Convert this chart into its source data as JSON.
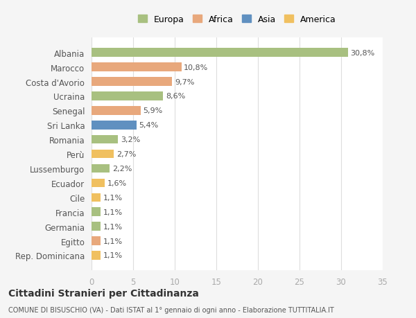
{
  "countries": [
    "Albania",
    "Marocco",
    "Costa d'Avorio",
    "Ucraina",
    "Senegal",
    "Sri Lanka",
    "Romania",
    "Perù",
    "Lussemburgo",
    "Ecuador",
    "Cile",
    "Francia",
    "Germania",
    "Egitto",
    "Rep. Dominicana"
  ],
  "values": [
    30.8,
    10.8,
    9.7,
    8.6,
    5.9,
    5.4,
    3.2,
    2.7,
    2.2,
    1.6,
    1.1,
    1.1,
    1.1,
    1.1,
    1.1
  ],
  "labels": [
    "30,8%",
    "10,8%",
    "9,7%",
    "8,6%",
    "5,9%",
    "5,4%",
    "3,2%",
    "2,7%",
    "2,2%",
    "1,6%",
    "1,1%",
    "1,1%",
    "1,1%",
    "1,1%",
    "1,1%"
  ],
  "colors": [
    "#a8c080",
    "#e8a87c",
    "#e8a87c",
    "#a8c080",
    "#e8a87c",
    "#6090c0",
    "#a8c080",
    "#f0c060",
    "#a8c080",
    "#f0c060",
    "#f0c060",
    "#a8c080",
    "#a8c080",
    "#e8a87c",
    "#f0c060"
  ],
  "legend_labels": [
    "Europa",
    "Africa",
    "Asia",
    "America"
  ],
  "legend_colors": [
    "#a8c080",
    "#e8a87c",
    "#6090c0",
    "#f0c060"
  ],
  "title": "Cittadini Stranieri per Cittadinanza",
  "subtitle": "COMUNE DI BISUSCHIO (VA) - Dati ISTAT al 1° gennaio di ogni anno - Elaborazione TUTTITALIA.IT",
  "xlim": [
    0,
    35
  ],
  "xticks": [
    0,
    5,
    10,
    15,
    20,
    25,
    30,
    35
  ],
  "bg_color": "#f5f5f5",
  "bar_bg_color": "#ffffff"
}
